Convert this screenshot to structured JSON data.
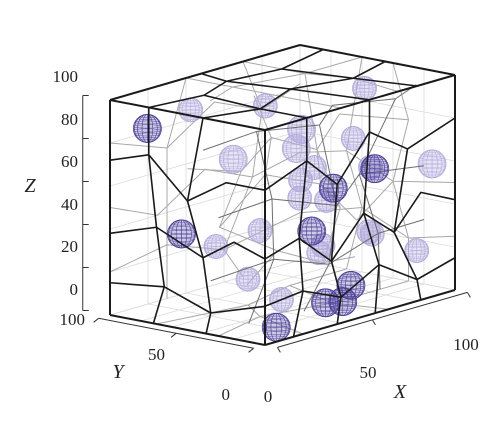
{
  "axes": {
    "x": {
      "label": "X",
      "ticks": [
        "0",
        "50",
        "100"
      ]
    },
    "y": {
      "label": "Y",
      "ticks": [
        "0",
        "50",
        "100"
      ]
    },
    "z": {
      "label": "Z",
      "ticks": [
        "0",
        "20",
        "40",
        "60",
        "80",
        "100"
      ]
    }
  },
  "colors": {
    "sphere_front": "#4a3f9a",
    "sphere_back": "#b3acdd",
    "edge_front": "#1a1a1a",
    "edge_back": "#a8a8a8",
    "grid": "#dcdcdc"
  },
  "spheres": [
    {
      "x": 5,
      "y": 82,
      "z": 88,
      "r": 7,
      "depth": "front"
    },
    {
      "x": 18,
      "y": 70,
      "z": 95,
      "r": 6,
      "depth": "back"
    },
    {
      "x": 45,
      "y": 55,
      "z": 92,
      "r": 6,
      "depth": "back"
    },
    {
      "x": 85,
      "y": 40,
      "z": 92,
      "r": 6,
      "depth": "back"
    },
    {
      "x": 20,
      "y": 45,
      "z": 75,
      "r": 7,
      "depth": "back"
    },
    {
      "x": 45,
      "y": 35,
      "z": 75,
      "r": 7,
      "depth": "back"
    },
    {
      "x": 60,
      "y": 50,
      "z": 78,
      "r": 7,
      "depth": "back"
    },
    {
      "x": 75,
      "y": 35,
      "z": 72,
      "r": 6,
      "depth": "back"
    },
    {
      "x": 35,
      "y": 20,
      "z": 65,
      "r": 6,
      "depth": "back"
    },
    {
      "x": 40,
      "y": 5,
      "z": 62,
      "r": 7,
      "depth": "front"
    },
    {
      "x": 70,
      "y": 15,
      "z": 62,
      "r": 7,
      "depth": "front"
    },
    {
      "x": 92,
      "y": 5,
      "z": 60,
      "r": 7,
      "depth": "back"
    },
    {
      "x": 80,
      "y": 30,
      "z": 58,
      "r": 6,
      "depth": "back"
    },
    {
      "x": 5,
      "y": 60,
      "z": 42,
      "r": 7,
      "depth": "front"
    },
    {
      "x": 15,
      "y": 50,
      "z": 35,
      "r": 6,
      "depth": "back"
    },
    {
      "x": 30,
      "y": 40,
      "z": 40,
      "r": 6,
      "depth": "back"
    },
    {
      "x": 45,
      "y": 25,
      "z": 38,
      "r": 7,
      "depth": "front"
    },
    {
      "x": 55,
      "y": 45,
      "z": 48,
      "r": 6,
      "depth": "back"
    },
    {
      "x": 65,
      "y": 40,
      "z": 45,
      "r": 6,
      "depth": "back"
    },
    {
      "x": 75,
      "y": 60,
      "z": 55,
      "r": 6,
      "depth": "back"
    },
    {
      "x": 55,
      "y": 30,
      "z": 28,
      "r": 6,
      "depth": "back"
    },
    {
      "x": 75,
      "y": 25,
      "z": 30,
      "r": 6,
      "depth": "back"
    },
    {
      "x": 85,
      "y": 35,
      "z": 25,
      "r": 6,
      "depth": "back"
    },
    {
      "x": 25,
      "y": 20,
      "z": 12,
      "r": 6,
      "depth": "back"
    },
    {
      "x": 10,
      "y": 5,
      "z": 5,
      "r": 7,
      "depth": "front"
    },
    {
      "x": 40,
      "y": 10,
      "z": 8,
      "r": 7,
      "depth": "front"
    },
    {
      "x": 45,
      "y": 5,
      "z": 8,
      "r": 7,
      "depth": "front"
    },
    {
      "x": 55,
      "y": 12,
      "z": 12,
      "r": 7,
      "depth": "front"
    },
    {
      "x": 40,
      "y": 60,
      "z": 12,
      "r": 6,
      "depth": "back"
    },
    {
      "x": 65,
      "y": 45,
      "z": 20,
      "r": 6,
      "depth": "back"
    },
    {
      "x": 88,
      "y": 10,
      "z": 20,
      "r": 6,
      "depth": "back"
    }
  ]
}
